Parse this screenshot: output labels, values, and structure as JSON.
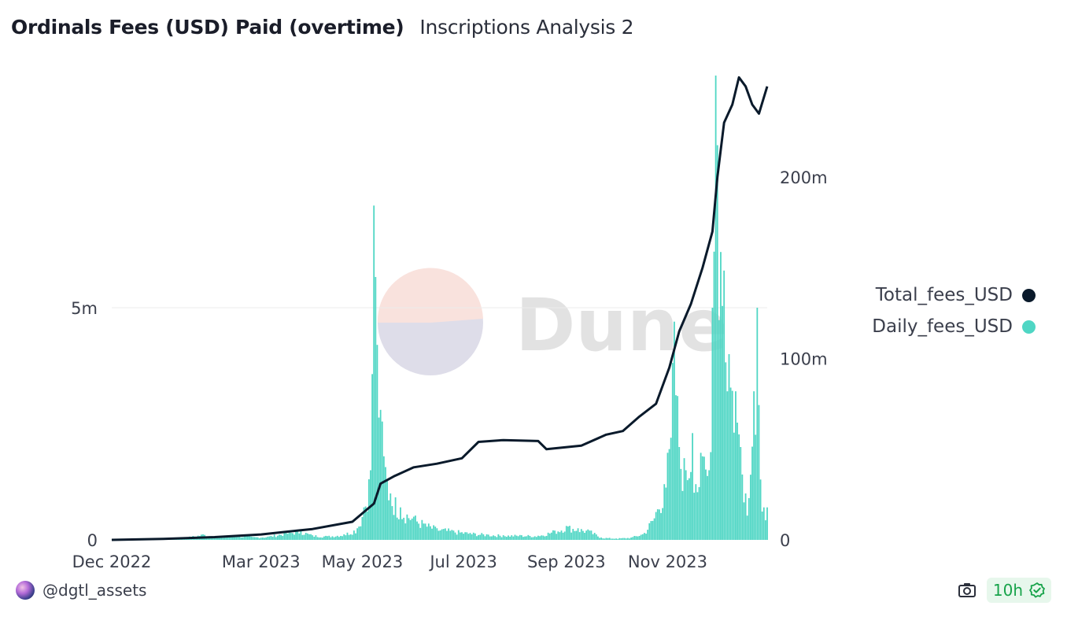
{
  "header": {
    "title": "Ordinals Fees (USD) Paid (overtime)",
    "subtitle": "Inscriptions Analysis 2"
  },
  "watermark": {
    "text": "Dune"
  },
  "legend": [
    {
      "label": "Total_fees_USD",
      "color": "#0a1a2b"
    },
    {
      "label": "Daily_fees_USD",
      "color": "#4fd6c4"
    }
  ],
  "footer": {
    "user": "@dgtl_assets",
    "refresh": "10h"
  },
  "chart_data": {
    "type": "bar+line",
    "x_range": [
      "2022-12-01",
      "2023-12-31"
    ],
    "x_ticks": [
      "Dec 2022",
      "Mar 2023",
      "May 2023",
      "Jul 2023",
      "Sep 2023",
      "Nov 2023"
    ],
    "y_left": {
      "ticks": [
        "0",
        "5m"
      ],
      "tick_values": [
        0,
        5000000
      ],
      "max": 10000000,
      "grid": true
    },
    "y_right": {
      "ticks": [
        "0",
        "100m",
        "200m"
      ],
      "tick_values": [
        0,
        100000000,
        200000000
      ],
      "max": 256000000
    },
    "series": [
      {
        "name": "Daily_fees_USD",
        "type": "bar",
        "axis": "left",
        "color": "#4fd6c4",
        "points": [
          [
            "2022-12-01",
            2000
          ],
          [
            "2022-12-15",
            8000
          ],
          [
            "2023-01-01",
            20000
          ],
          [
            "2023-01-15",
            50000
          ],
          [
            "2023-01-25",
            120000
          ],
          [
            "2023-02-05",
            60000
          ],
          [
            "2023-02-15",
            90000
          ],
          [
            "2023-02-25",
            60000
          ],
          [
            "2023-03-05",
            70000
          ],
          [
            "2023-03-15",
            150000
          ],
          [
            "2023-03-25",
            200000
          ],
          [
            "2023-04-01",
            100000
          ],
          [
            "2023-04-10",
            80000
          ],
          [
            "2023-04-20",
            120000
          ],
          [
            "2023-04-28",
            250000
          ],
          [
            "2023-05-02",
            700000
          ],
          [
            "2023-05-06",
            1500000
          ],
          [
            "2023-05-08",
            7200000
          ],
          [
            "2023-05-10",
            4200000
          ],
          [
            "2023-05-12",
            2800000
          ],
          [
            "2023-05-14",
            1800000
          ],
          [
            "2023-05-18",
            1000000
          ],
          [
            "2023-05-24",
            700000
          ],
          [
            "2023-06-01",
            500000
          ],
          [
            "2023-06-08",
            350000
          ],
          [
            "2023-06-15",
            250000
          ],
          [
            "2023-06-25",
            200000
          ],
          [
            "2023-07-05",
            150000
          ],
          [
            "2023-07-15",
            120000
          ],
          [
            "2023-07-25",
            100000
          ],
          [
            "2023-08-05",
            100000
          ],
          [
            "2023-08-15",
            90000
          ],
          [
            "2023-08-25",
            200000
          ],
          [
            "2023-09-01",
            300000
          ],
          [
            "2023-09-08",
            250000
          ],
          [
            "2023-09-15",
            200000
          ],
          [
            "2023-09-22",
            50000
          ],
          [
            "2023-10-01",
            30000
          ],
          [
            "2023-10-10",
            50000
          ],
          [
            "2023-10-18",
            150000
          ],
          [
            "2023-10-25",
            600000
          ],
          [
            "2023-10-30",
            1200000
          ],
          [
            "2023-11-03",
            2200000
          ],
          [
            "2023-11-05",
            4700000
          ],
          [
            "2023-11-08",
            2000000
          ],
          [
            "2023-11-12",
            1500000
          ],
          [
            "2023-11-16",
            2300000
          ],
          [
            "2023-11-18",
            1200000
          ],
          [
            "2023-11-22",
            1800000
          ],
          [
            "2023-11-26",
            1500000
          ],
          [
            "2023-11-28",
            5000000
          ],
          [
            "2023-11-30",
            10000000
          ],
          [
            "2023-12-01",
            8500000
          ],
          [
            "2023-12-03",
            6200000
          ],
          [
            "2023-12-05",
            5800000
          ],
          [
            "2023-12-08",
            4000000
          ],
          [
            "2023-12-12",
            3200000
          ],
          [
            "2023-12-15",
            2000000
          ],
          [
            "2023-12-18",
            1000000
          ],
          [
            "2023-12-20",
            900000
          ],
          [
            "2023-12-23",
            3200000
          ],
          [
            "2023-12-25",
            5000000
          ],
          [
            "2023-12-27",
            1300000
          ],
          [
            "2023-12-29",
            700000
          ],
          [
            "2023-12-31",
            700000
          ]
        ]
      },
      {
        "name": "Total_fees_USD",
        "type": "line",
        "axis": "right",
        "color": "#0a1a2b",
        "points": [
          [
            "2022-12-01",
            0
          ],
          [
            "2023-01-01",
            500000
          ],
          [
            "2023-02-01",
            1500000
          ],
          [
            "2023-03-01",
            3000000
          ],
          [
            "2023-04-01",
            6000000
          ],
          [
            "2023-04-25",
            10000000
          ],
          [
            "2023-05-08",
            20000000
          ],
          [
            "2023-05-12",
            31000000
          ],
          [
            "2023-05-20",
            35000000
          ],
          [
            "2023-06-01",
            40000000
          ],
          [
            "2023-06-15",
            42000000
          ],
          [
            "2023-06-30",
            45000000
          ],
          [
            "2023-07-10",
            54000000
          ],
          [
            "2023-07-25",
            55000000
          ],
          [
            "2023-08-15",
            54500000
          ],
          [
            "2023-08-20",
            50000000
          ],
          [
            "2023-09-10",
            52000000
          ],
          [
            "2023-09-25",
            58000000
          ],
          [
            "2023-10-05",
            60000000
          ],
          [
            "2023-10-15",
            68000000
          ],
          [
            "2023-10-25",
            75000000
          ],
          [
            "2023-11-02",
            95000000
          ],
          [
            "2023-11-08",
            115000000
          ],
          [
            "2023-11-15",
            130000000
          ],
          [
            "2023-11-22",
            150000000
          ],
          [
            "2023-11-28",
            170000000
          ],
          [
            "2023-12-01",
            200000000
          ],
          [
            "2023-12-05",
            230000000
          ],
          [
            "2023-12-10",
            240000000
          ],
          [
            "2023-12-14",
            255000000
          ],
          [
            "2023-12-18",
            250000000
          ],
          [
            "2023-12-22",
            240000000
          ],
          [
            "2023-12-26",
            235000000
          ],
          [
            "2023-12-31",
            250000000
          ]
        ]
      }
    ]
  }
}
